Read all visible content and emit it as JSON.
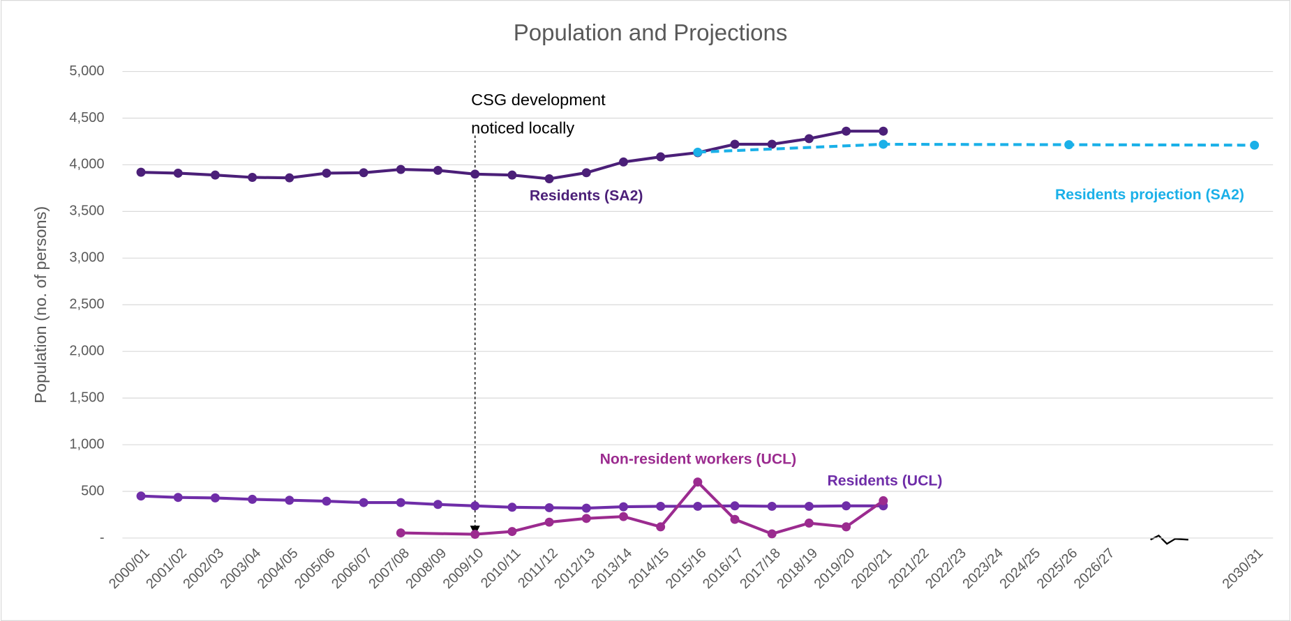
{
  "chart_data": {
    "type": "line",
    "title": "Population and Projections",
    "y_label": "Population (no. of persons)",
    "categories": [
      "2000/01",
      "2001/02",
      "2002/03",
      "2003/04",
      "2004/05",
      "2005/06",
      "2006/07",
      "2007/08",
      "2008/09",
      "2009/10",
      "2010/11",
      "2011/12",
      "2012/13",
      "2013/14",
      "2014/15",
      "2015/16",
      "2016/17",
      "2017/18",
      "2018/19",
      "2019/20",
      "2020/21",
      "2021/22",
      "2022/23",
      "2023/24",
      "2024/25",
      "2025/26",
      "2026/27",
      null,
      null,
      null,
      "2030/31"
    ],
    "ylim": [
      0,
      5000
    ],
    "yticks": [
      {
        "value": 0,
        "label": "-"
      },
      500,
      {
        "value": 1000,
        "label": "1,000"
      },
      {
        "value": 1500,
        "label": "1,500"
      },
      {
        "value": 2000,
        "label": "2,000"
      },
      {
        "value": 2500,
        "label": "2,500"
      },
      {
        "value": 3000,
        "label": "3,000"
      },
      {
        "value": 3500,
        "label": "3,500"
      },
      {
        "value": 4000,
        "label": "4,000"
      },
      {
        "value": 4500,
        "label": "4,500"
      },
      {
        "value": 5000,
        "label": "5,000"
      }
    ],
    "grid": true,
    "series": [
      {
        "name": "Residents (SA2)",
        "color": "#4b1f78",
        "dashed": false,
        "connect_gaps": false,
        "values": [
          3920,
          3910,
          3890,
          3865,
          3860,
          3910,
          3915,
          3950,
          3940,
          3900,
          3890,
          3850,
          3915,
          4030,
          4085,
          4130,
          4220,
          4220,
          4280,
          4360,
          4360,
          null,
          null,
          null,
          null,
          null,
          null,
          null,
          null,
          null,
          null
        ]
      },
      {
        "name": "Residents projection (SA2)",
        "color": "#1ab0e8",
        "dashed": true,
        "connect_gaps": true,
        "values": [
          null,
          null,
          null,
          null,
          null,
          null,
          null,
          null,
          null,
          null,
          null,
          null,
          null,
          null,
          null,
          4135,
          null,
          null,
          null,
          null,
          4220,
          null,
          null,
          null,
          null,
          4215,
          null,
          null,
          null,
          null,
          4210
        ]
      },
      {
        "name": "Residents (UCL)",
        "color": "#6f2da8",
        "dashed": false,
        "connect_gaps": false,
        "values": [
          450,
          435,
          430,
          415,
          405,
          395,
          380,
          380,
          360,
          345,
          330,
          325,
          320,
          335,
          340,
          340,
          345,
          340,
          340,
          345,
          345,
          null,
          null,
          null,
          null,
          null,
          null,
          null,
          null,
          null,
          null
        ]
      },
      {
        "name": "Non-resident workers (UCL)",
        "color": "#9b2b8f",
        "dashed": false,
        "connect_gaps": true,
        "values": [
          null,
          null,
          null,
          null,
          null,
          null,
          null,
          55,
          null,
          40,
          70,
          170,
          210,
          230,
          120,
          600,
          200,
          45,
          160,
          120,
          400,
          null,
          null,
          null,
          null,
          null,
          null,
          null,
          null,
          null,
          null
        ]
      }
    ],
    "annotation": {
      "lines": [
        "CSG development",
        "noticed locally"
      ],
      "x": "2009/10"
    }
  }
}
